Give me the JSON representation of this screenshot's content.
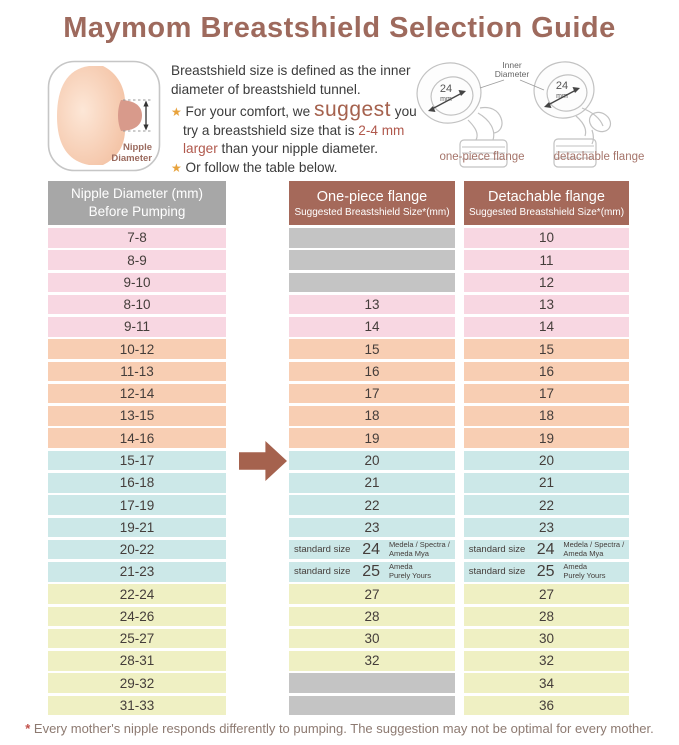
{
  "colors": {
    "title": "#9e6a5d",
    "brown_header": "#a5695a",
    "gray_header": "#a7a7a7",
    "gray_cell": "#c4c4c4",
    "pink": "#f8d7e2",
    "peach": "#f8ceb3",
    "cyan": "#cce8e8",
    "yellow": "#eff0c3",
    "arrow": "#a5624e",
    "star": "#e8a33d",
    "accent_text": "#a5624e",
    "highlight_text": "#b0584c",
    "caption": "#a5746a",
    "footnote_text": "#8d7a71",
    "footnote_star": "#c1504a"
  },
  "title": "Maymom Breastshield Selection Guide",
  "intro": {
    "line1": "Breastshield size is defined as the inner diameter of breastshield tunnel.",
    "bullet1_pre": "For your comfort, we ",
    "bullet1_suggest": "suggest",
    "bullet1_mid": " you try a breastshield size that is ",
    "bullet1_highlight": "2-4 mm larger",
    "bullet1_post": " than your nipple diameter.",
    "bullet2": "Or follow the table below.",
    "star": "★"
  },
  "diagram": {
    "label_line1": "Nipple",
    "label_line2": "Diameter"
  },
  "flanges": {
    "inner_label_line1": "Inner",
    "inner_label_line2": "Diameter",
    "size": "24",
    "unit": "mm",
    "one_piece_caption": "one-piece flange",
    "detachable_caption": "detachable flange"
  },
  "table": {
    "col1_header_line1": "Nipple Diameter (mm)",
    "col1_header_line2": "Before Pumping",
    "col2_header_line1": "One-piece flange",
    "col2_header_line2": "Suggested Breastshield Size*(mm)",
    "col3_header_line1": "Detachable flange",
    "col3_header_line2": "Suggested Breastshield Size*(mm)",
    "rows": [
      {
        "nipple": "7-8",
        "one_piece": null,
        "detachable": "10",
        "band": "pink"
      },
      {
        "nipple": "8-9",
        "one_piece": null,
        "detachable": "11",
        "band": "pink"
      },
      {
        "nipple": "9-10",
        "one_piece": null,
        "detachable": "12",
        "band": "pink"
      },
      {
        "nipple": "8-10",
        "one_piece": "13",
        "detachable": "13",
        "band": "pink"
      },
      {
        "nipple": "9-11",
        "one_piece": "14",
        "detachable": "14",
        "band": "pink"
      },
      {
        "nipple": "10-12",
        "one_piece": "15",
        "detachable": "15",
        "band": "peach"
      },
      {
        "nipple": "11-13",
        "one_piece": "16",
        "detachable": "16",
        "band": "peach"
      },
      {
        "nipple": "12-14",
        "one_piece": "17",
        "detachable": "17",
        "band": "peach"
      },
      {
        "nipple": "13-15",
        "one_piece": "18",
        "detachable": "18",
        "band": "peach"
      },
      {
        "nipple": "14-16",
        "one_piece": "19",
        "detachable": "19",
        "band": "peach"
      },
      {
        "nipple": "15-17",
        "one_piece": "20",
        "detachable": "20",
        "band": "cyan"
      },
      {
        "nipple": "16-18",
        "one_piece": "21",
        "detachable": "21",
        "band": "cyan"
      },
      {
        "nipple": "17-19",
        "one_piece": "22",
        "detachable": "22",
        "band": "cyan"
      },
      {
        "nipple": "19-21",
        "one_piece": "23",
        "detachable": "23",
        "band": "cyan"
      },
      {
        "nipple": "20-22",
        "one_piece": {
          "prefix": "standard size",
          "size": "24",
          "brand1": "Medela / Spectra /",
          "brand2": "Ameda Mya"
        },
        "detachable": {
          "prefix": "standard size",
          "size": "24",
          "brand1": "Medela / Spectra /",
          "brand2": "Ameda Mya"
        },
        "band": "cyan"
      },
      {
        "nipple": "21-23",
        "one_piece": {
          "prefix": "standard size",
          "size": "25",
          "brand1": "Ameda",
          "brand2": "Purely Yours"
        },
        "detachable": {
          "prefix": "standard size",
          "size": "25",
          "brand1": "Ameda",
          "brand2": "Purely Yours"
        },
        "band": "cyan"
      },
      {
        "nipple": "22-24",
        "one_piece": "27",
        "detachable": "27",
        "band": "yellow"
      },
      {
        "nipple": "24-26",
        "one_piece": "28",
        "detachable": "28",
        "band": "yellow"
      },
      {
        "nipple": "25-27",
        "one_piece": "30",
        "detachable": "30",
        "band": "yellow"
      },
      {
        "nipple": "28-31",
        "one_piece": "32",
        "detachable": "32",
        "band": "yellow"
      },
      {
        "nipple": "29-32",
        "one_piece": null,
        "detachable": "34",
        "band": "yellow"
      },
      {
        "nipple": "31-33",
        "one_piece": null,
        "detachable": "36",
        "band": "yellow"
      }
    ]
  },
  "footnote": {
    "star": "*",
    "text": " Every mother's nipple responds differently to pumping. The suggestion may not be optimal for every mother."
  }
}
